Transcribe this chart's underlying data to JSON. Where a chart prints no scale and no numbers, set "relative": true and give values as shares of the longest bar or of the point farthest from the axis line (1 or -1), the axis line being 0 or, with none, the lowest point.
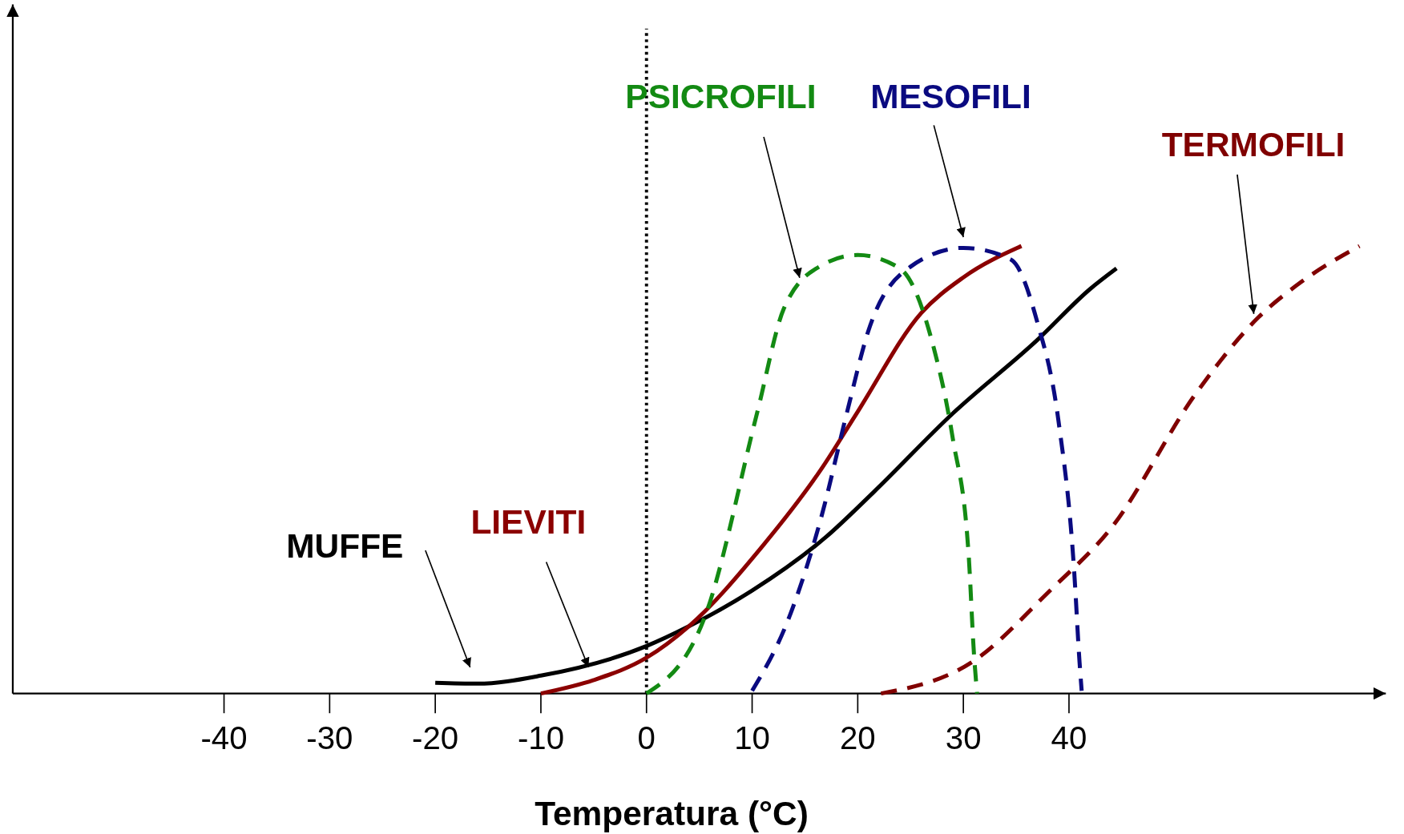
{
  "chart_data": {
    "type": "line",
    "relative": true,
    "xlabel": "Temperatura (°C)",
    "xlim": [
      -60,
      70
    ],
    "xticks": [
      -40,
      -30,
      -20,
      -10,
      0,
      10,
      20,
      30,
      40
    ],
    "tick_labels": "x",
    "ref_lines": [
      {
        "axis": "x",
        "value": 0,
        "color": "#000000",
        "line_style": "dotted"
      }
    ],
    "series": [
      {
        "name": "MUFFE",
        "color": "#000000",
        "line_style": "solid",
        "x": [
          -20,
          -16,
          -10,
          0,
          4,
          10,
          17,
          21.5,
          29,
          37,
          42,
          44.5
        ],
        "values": [
          0.024,
          0.022,
          0.04,
          0.106,
          0.15,
          0.23,
          0.35,
          0.45,
          0.626,
          0.79,
          0.904,
          0.95
        ]
      },
      {
        "name": "LIEVITI",
        "color": "#8b0000",
        "line_style": "solid",
        "x": [
          -10,
          -5,
          0,
          4,
          11,
          16.5,
          20,
          26,
          30,
          35.5
        ],
        "values": [
          0,
          0.03,
          0.08,
          0.15,
          0.33,
          0.5,
          0.63,
          0.85,
          0.93,
          1.0
        ]
      },
      {
        "name": "PSICROFILI",
        "color": "#138a13",
        "line_style": "dashed",
        "x": [
          0,
          5.5,
          10.5,
          13,
          16.5,
          20,
          24,
          27,
          29,
          30.5,
          31,
          31.3
        ],
        "values": [
          0,
          0.17,
          0.63,
          0.86,
          0.956,
          0.98,
          0.95,
          0.79,
          0.57,
          0.31,
          0.09,
          0
        ]
      },
      {
        "name": "MESOFILI",
        "color": "#0a0a80",
        "line_style": "dashed",
        "x": [
          10,
          13.5,
          16.5,
          19,
          21,
          25,
          30,
          34.5,
          37,
          39,
          40.5,
          41,
          41.2
        ],
        "values": [
          0.006,
          0.17,
          0.39,
          0.63,
          0.81,
          0.954,
          0.996,
          0.97,
          0.83,
          0.61,
          0.27,
          0.07,
          0.006
        ]
      },
      {
        "name": "TERMOFILI",
        "color": "#800000",
        "line_style": "dashed",
        "x": [
          22.2,
          30.8,
          38.2,
          44,
          52,
          57.9,
          62,
          67.5
        ],
        "values": [
          0,
          0.07,
          0.23,
          0.37,
          0.67,
          0.84,
          0.92,
          1.0
        ]
      }
    ]
  }
}
